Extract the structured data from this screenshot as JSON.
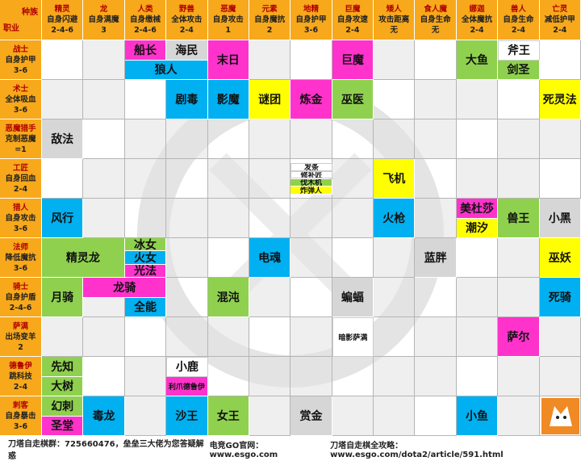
{
  "header": {
    "corner_race": "种族",
    "corner_class": "职业"
  },
  "races": [
    {
      "name": "精灵",
      "effect": "自身闪避",
      "counts": "2-4-6"
    },
    {
      "name": "龙",
      "effect": "自身满魔",
      "counts": "3"
    },
    {
      "name": "人类",
      "effect": "自身缴械",
      "counts": "2-4-6"
    },
    {
      "name": "野兽",
      "effect": "全体攻击",
      "counts": "2-4"
    },
    {
      "name": "恶魔",
      "effect": "自身攻击",
      "counts": "1"
    },
    {
      "name": "元素",
      "effect": "自身魔抗",
      "counts": "2"
    },
    {
      "name": "地精",
      "effect": "自身护甲",
      "counts": "3-6"
    },
    {
      "name": "巨魔",
      "effect": "自身攻速",
      "counts": "2-4"
    },
    {
      "name": "矮人",
      "effect": "攻击距离",
      "counts": "无"
    },
    {
      "name": "食人魔",
      "effect": "自身生命",
      "counts": "无"
    },
    {
      "name": "娜迦",
      "effect": "全体魔抗",
      "counts": "2-4"
    },
    {
      "name": "兽人",
      "effect": "自身生命",
      "counts": "2-4"
    },
    {
      "name": "亡灵",
      "effect": "减低护甲",
      "counts": "2-4"
    }
  ],
  "classes": [
    {
      "name": "战士",
      "effect": "自身护甲",
      "counts": "3-6"
    },
    {
      "name": "术士",
      "effect": "全体吸血",
      "counts": "3-6"
    },
    {
      "name": "恶魔猎手",
      "effect": "克制恶魔",
      "counts": "=1"
    },
    {
      "name": "工匠",
      "effect": "自身回血",
      "counts": "2-4"
    },
    {
      "name": "猎人",
      "effect": "自身攻击",
      "counts": "3-6"
    },
    {
      "name": "法师",
      "effect": "降低魔抗",
      "counts": "3-6"
    },
    {
      "name": "骑士",
      "effect": "自身护盾",
      "counts": "2-4-6"
    },
    {
      "name": "萨满",
      "effect": "出场变羊",
      "counts": "2"
    },
    {
      "name": "德鲁伊",
      "effect": "跳科技",
      "counts": "2-4"
    },
    {
      "name": "刺客",
      "effect": "自身暴击",
      "counts": "3-6"
    }
  ],
  "heroes": [
    "船长",
    "海民",
    "狼人",
    "末日",
    "巨魔",
    "大鱼",
    "斧王",
    "剑圣",
    "剧毒",
    "影魔",
    "谜团",
    "炼金",
    "巫医",
    "死灵法",
    "敌法",
    "发条",
    "修补匠",
    "伐木机",
    "炸弹人",
    "飞机",
    "风行",
    "火枪",
    "美杜莎",
    "潮汐",
    "兽王",
    "小黑",
    "精灵龙",
    "冰女",
    "火女",
    "光法",
    "电魂",
    "蓝胖",
    "巫妖",
    "月骑",
    "龙骑",
    "全能",
    "混沌",
    "蝙蝠",
    "死骑",
    "暗影萨满",
    "萨尔",
    "先知",
    "大树",
    "小鹿",
    "利爪德鲁伊",
    "幻刺",
    "圣堂",
    "毒龙",
    "沙王",
    "女王",
    "赏金",
    "小鱼"
  ],
  "footer": [
    "刀塔自走棋群：725660476，垒垒三大佬为您答疑解惑",
    "电竞GO官网：www.esgo.com",
    "刀塔自走棋全攻略：www.esgo.com/dota2/article/591.html"
  ]
}
